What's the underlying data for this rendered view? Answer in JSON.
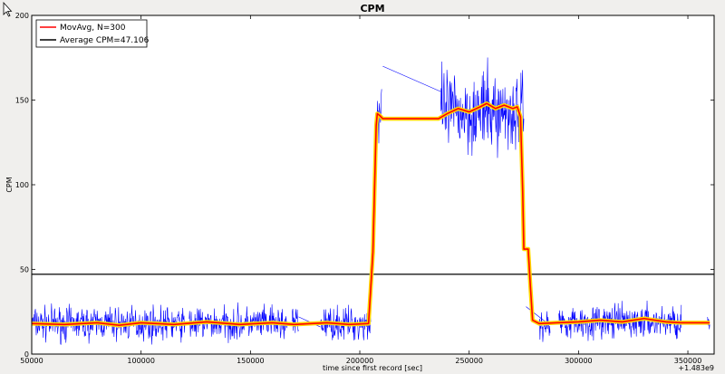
{
  "chart_data": {
    "type": "line",
    "title": "CPM",
    "xlabel": "time since first record [sec]",
    "ylabel": "CPM",
    "offset_label": "+1.483e9",
    "xlim": [
      50000,
      362000
    ],
    "ylim": [
      0,
      200
    ],
    "xticks": [
      50000,
      100000,
      150000,
      200000,
      250000,
      300000,
      350000
    ],
    "yticks": [
      0,
      50,
      100,
      150,
      200
    ],
    "grid": false,
    "legend_position": "top-left",
    "series": [
      {
        "name": "",
        "role": "raw",
        "color": "#0000ff",
        "segments": [
          {
            "x_start": 50000,
            "x_end": 120000,
            "mean": 18,
            "spread": 9
          },
          {
            "x_start": 122000,
            "x_end": 167000,
            "mean": 18,
            "spread": 9
          },
          {
            "x_start": 169000,
            "x_end": 172000,
            "mean": 18,
            "spread": 9
          },
          {
            "x_start": 182000,
            "x_end": 205000,
            "mean": 18,
            "spread": 9
          },
          {
            "x_start": 207000,
            "x_end": 210000,
            "mean": 140,
            "spread": 18
          },
          {
            "x_start": 237000,
            "x_end": 275000,
            "mean": 143,
            "spread": 22
          },
          {
            "x_start": 282000,
            "x_end": 287000,
            "mean": 17,
            "spread": 8
          },
          {
            "x_start": 291000,
            "x_end": 347000,
            "mean": 19,
            "spread": 9
          },
          {
            "x_start": 359000,
            "x_end": 360000,
            "mean": 18,
            "spread": 9
          }
        ],
        "connectors": [
          {
            "from": [
              210500,
              170
            ],
            "to": [
              237000,
              155
            ]
          },
          {
            "from": [
              172000,
              22
            ],
            "to": [
              182000,
              16
            ]
          },
          {
            "from": [
              276000,
              28
            ],
            "to": [
              286000,
              18
            ]
          }
        ]
      },
      {
        "name": "MovAvg, N=300",
        "role": "moving-average",
        "color": "#ff0000",
        "halo_color": "#ffd700",
        "points": [
          [
            50000,
            18
          ],
          [
            65000,
            17.5
          ],
          [
            80000,
            18.5
          ],
          [
            90000,
            17
          ],
          [
            100000,
            18.5
          ],
          [
            115000,
            17.5
          ],
          [
            130000,
            19
          ],
          [
            145000,
            17.5
          ],
          [
            160000,
            18.5
          ],
          [
            170000,
            17.5
          ],
          [
            185000,
            18.5
          ],
          [
            195000,
            17.5
          ],
          [
            204000,
            18
          ],
          [
            206000,
            60
          ],
          [
            207500,
            135
          ],
          [
            208000,
            142
          ],
          [
            209000,
            141
          ],
          [
            210500,
            139
          ],
          [
            236000,
            139
          ],
          [
            240000,
            142
          ],
          [
            245000,
            145
          ],
          [
            250000,
            143
          ],
          [
            255000,
            146
          ],
          [
            258000,
            148
          ],
          [
            262000,
            145
          ],
          [
            266000,
            147
          ],
          [
            270000,
            145
          ],
          [
            272000,
            146
          ],
          [
            273500,
            140
          ],
          [
            274500,
            95
          ],
          [
            275000,
            62
          ],
          [
            277000,
            62
          ],
          [
            278000,
            40
          ],
          [
            279000,
            20
          ],
          [
            282000,
            18
          ],
          [
            290000,
            18.5
          ],
          [
            300000,
            19
          ],
          [
            310000,
            20
          ],
          [
            320000,
            19
          ],
          [
            330000,
            21
          ],
          [
            340000,
            19
          ],
          [
            347000,
            18.5
          ],
          [
            360000,
            18.5
          ]
        ]
      },
      {
        "name": "Average CPM=47.106",
        "role": "average",
        "color": "#000000",
        "value": 47.106
      }
    ]
  }
}
